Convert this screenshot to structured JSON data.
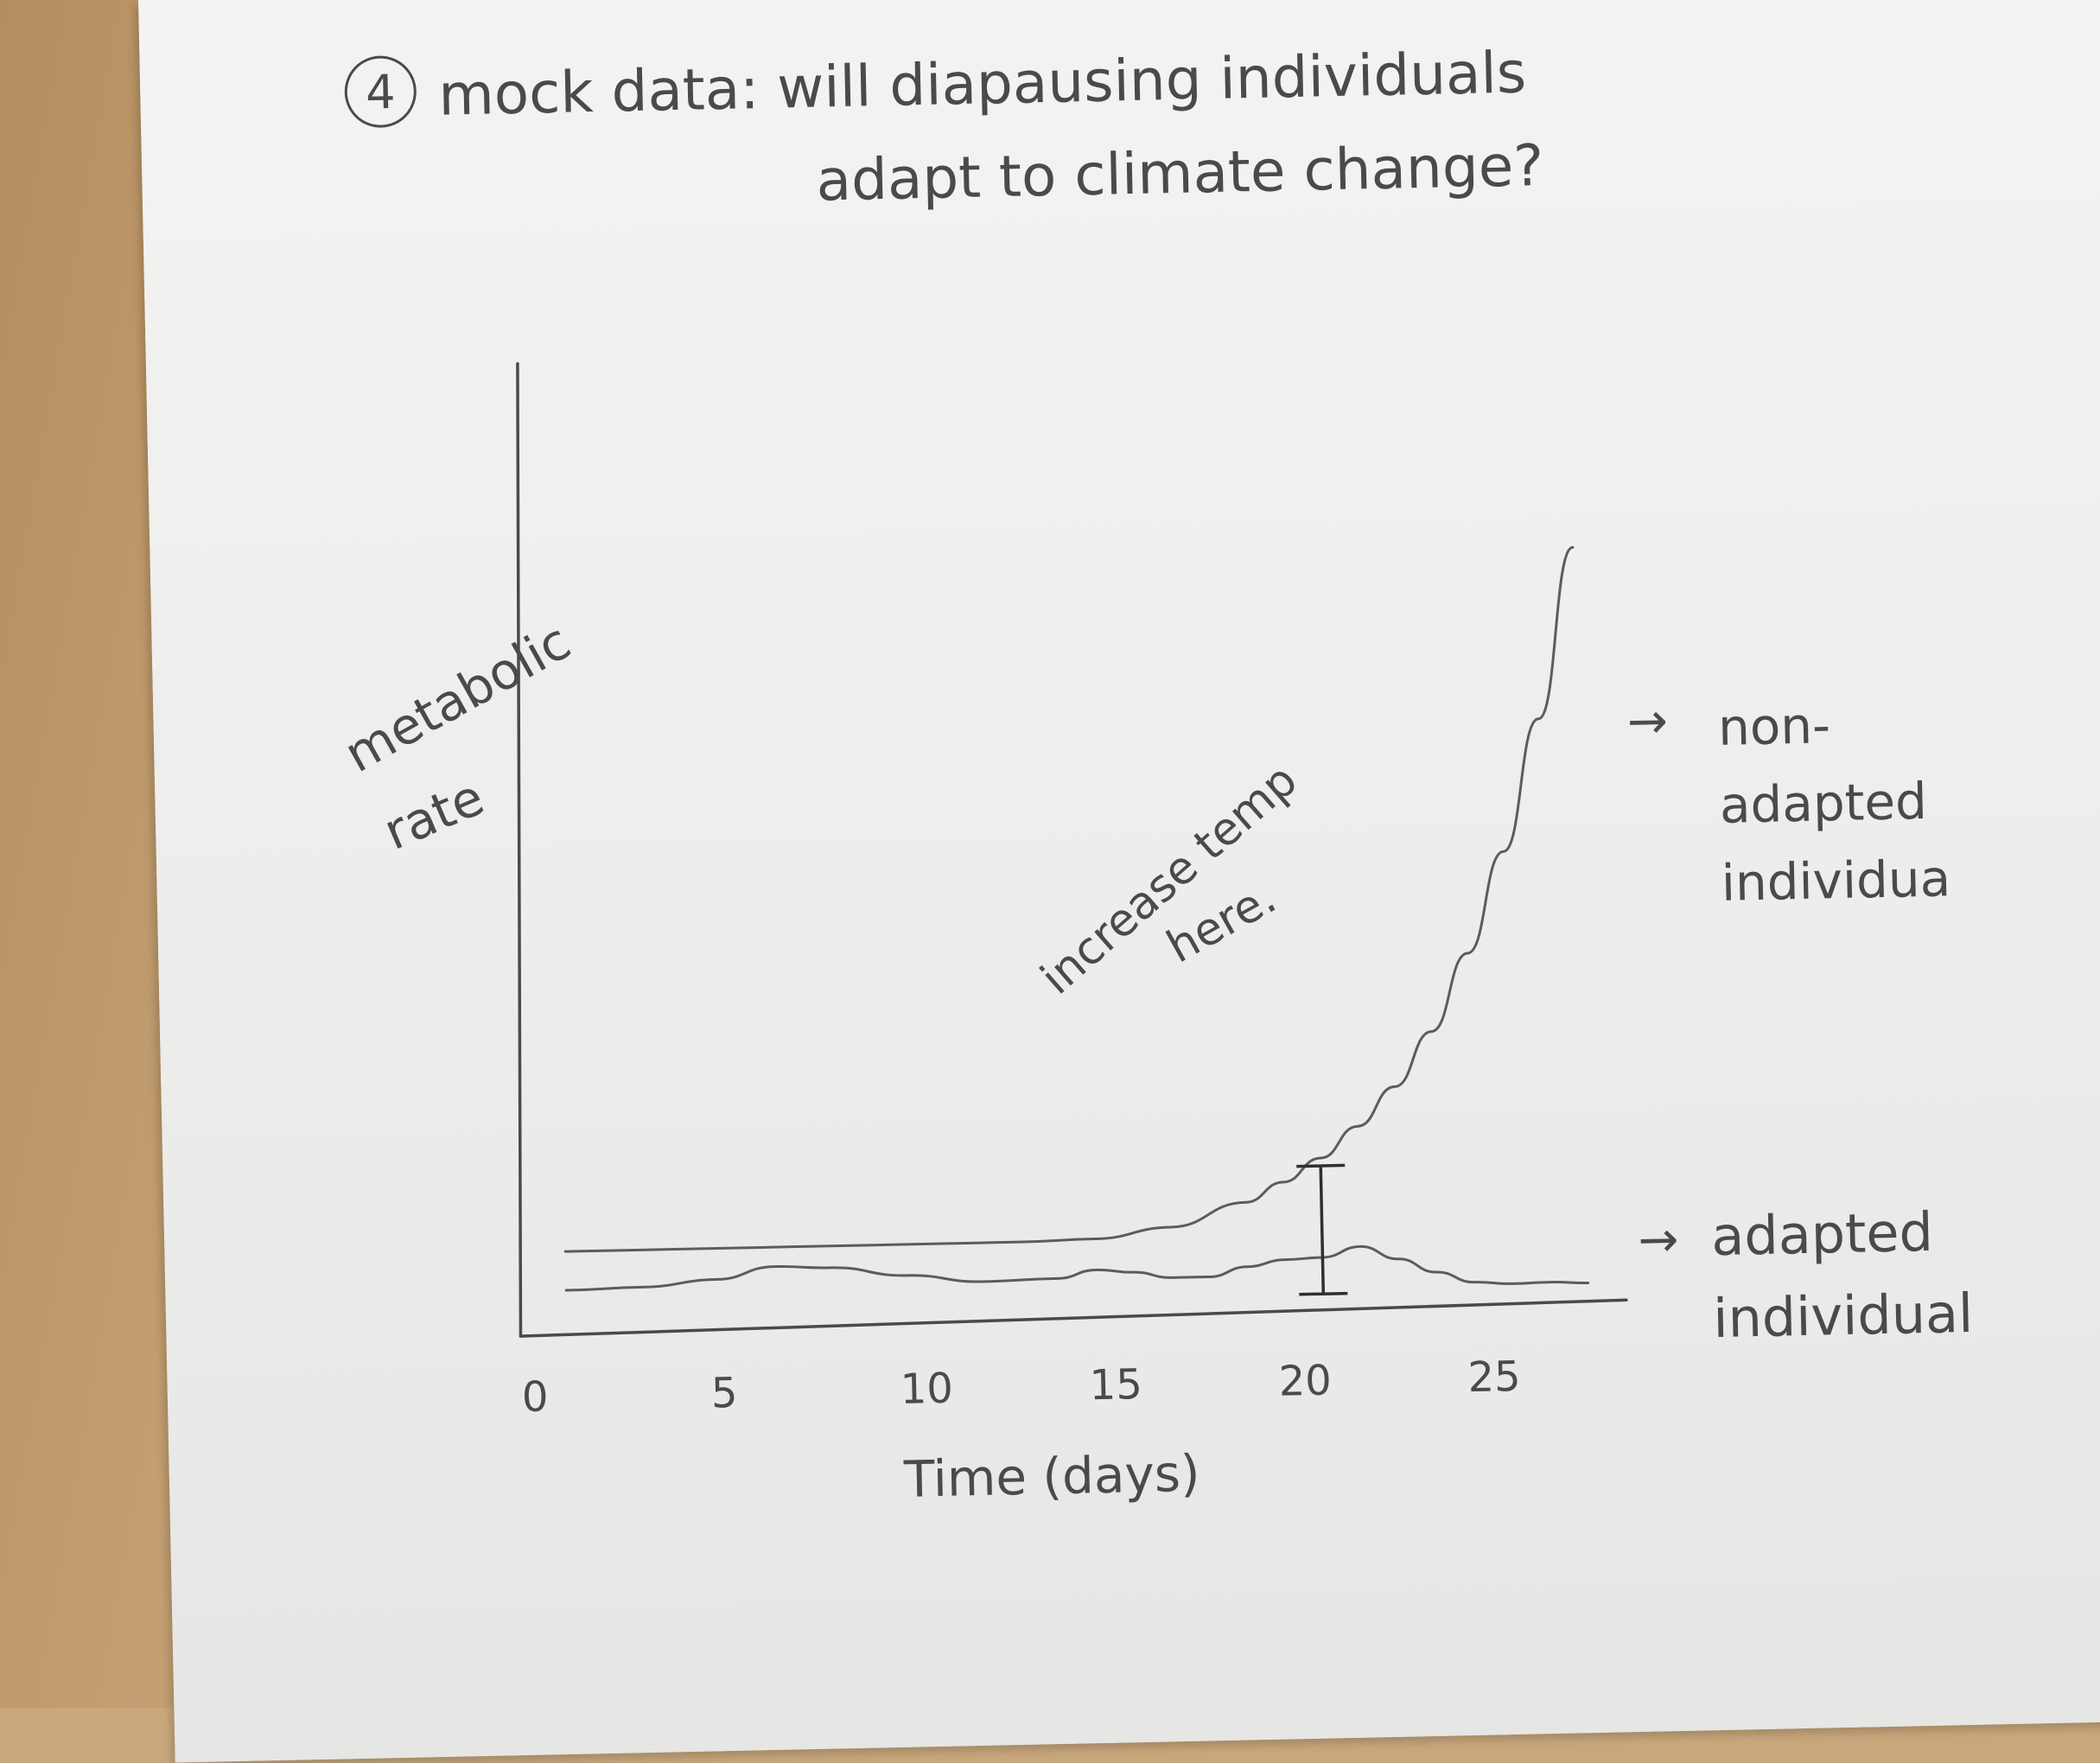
{
  "title": {
    "number": "4",
    "line1": "mock data: will diapausing individuals",
    "line2": "adapt to climate change?"
  },
  "chart_data": {
    "type": "line",
    "xlabel": "Time (days)",
    "ylabel_line1": "metabolic",
    "ylabel_line2": "rate",
    "x_ticks": [
      "0",
      "5",
      "10",
      "15",
      "20",
      "25"
    ],
    "xlim": [
      0,
      29
    ],
    "ylim": [
      0,
      10
    ],
    "grid": false,
    "series": [
      {
        "name_lines": [
          "non-",
          "adapted",
          "individua"
        ],
        "x": [
          1,
          3,
          5,
          7,
          9,
          11,
          13,
          15,
          17,
          19,
          20,
          21,
          22,
          23,
          24,
          25,
          26,
          27,
          28
        ],
        "y": [
          1.0,
          1.0,
          1.0,
          1.0,
          1.0,
          1.0,
          1.0,
          1.02,
          1.15,
          1.45,
          1.7,
          2.0,
          2.4,
          2.9,
          3.6,
          4.6,
          5.9,
          7.6,
          9.8
        ]
      },
      {
        "name_lines": [
          "adapted",
          "individual"
        ],
        "x": [
          1,
          3,
          5,
          6.5,
          8,
          10,
          12,
          14,
          15,
          16,
          17,
          18,
          19,
          20,
          21,
          22,
          23,
          24,
          25,
          26,
          27,
          28
        ],
        "y": [
          0.5,
          0.52,
          0.6,
          0.75,
          0.72,
          0.6,
          0.5,
          0.52,
          0.62,
          0.58,
          0.5,
          0.5,
          0.62,
          0.7,
          0.72,
          0.85,
          0.68,
          0.5,
          0.36,
          0.33,
          0.34,
          0.32
        ]
      }
    ],
    "error_bar": {
      "x": 21,
      "low": 0.25,
      "high": 1.9
    },
    "annotation_line1": "increase temp",
    "annotation_line2": "here."
  }
}
